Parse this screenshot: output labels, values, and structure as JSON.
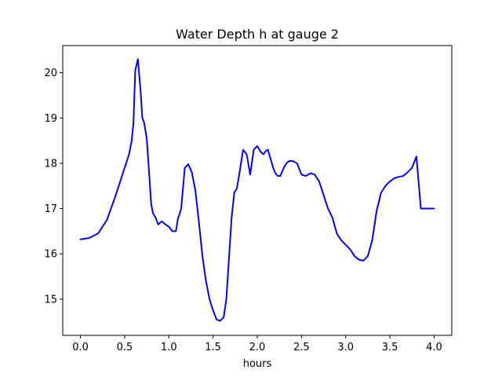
{
  "chart_data": {
    "type": "line",
    "title": "Water Depth h at gauge 2",
    "xlabel": "hours",
    "ylabel": "",
    "xlim": [
      -0.2,
      4.2
    ],
    "ylim": [
      14.2,
      20.6
    ],
    "xticks": [
      0.0,
      0.5,
      1.0,
      1.5,
      2.0,
      2.5,
      3.0,
      3.5,
      4.0
    ],
    "xtick_labels": [
      "0.0",
      "0.5",
      "1.0",
      "1.5",
      "2.0",
      "2.5",
      "3.0",
      "3.5",
      "4.0"
    ],
    "yticks": [
      15,
      16,
      17,
      18,
      19,
      20
    ],
    "ytick_labels": [
      "15",
      "16",
      "17",
      "18",
      "19",
      "20"
    ],
    "grid": false,
    "series": [
      {
        "color": "#0000ff",
        "x": [
          0.0,
          0.1,
          0.2,
          0.3,
          0.4,
          0.5,
          0.55,
          0.58,
          0.6,
          0.62,
          0.65,
          0.68,
          0.7,
          0.72,
          0.75,
          0.78,
          0.8,
          0.82,
          0.85,
          0.88,
          0.92,
          0.96,
          1.0,
          1.04,
          1.08,
          1.1,
          1.14,
          1.18,
          1.22,
          1.26,
          1.28,
          1.3,
          1.34,
          1.38,
          1.42,
          1.46,
          1.5,
          1.54,
          1.58,
          1.62,
          1.65,
          1.68,
          1.71,
          1.74,
          1.77,
          1.8,
          1.84,
          1.88,
          1.92,
          1.96,
          2.0,
          2.04,
          2.07,
          2.1,
          2.12,
          2.15,
          2.18,
          2.2,
          2.23,
          2.26,
          2.3,
          2.33,
          2.36,
          2.4,
          2.45,
          2.5,
          2.55,
          2.6,
          2.65,
          2.7,
          2.75,
          2.8,
          2.85,
          2.9,
          2.95,
          3.0,
          3.05,
          3.1,
          3.15,
          3.2,
          3.25,
          3.3,
          3.35,
          3.4,
          3.45,
          3.5,
          3.55,
          3.6,
          3.65,
          3.7,
          3.75,
          3.8,
          3.85,
          3.9,
          3.95,
          4.0
        ],
        "y": [
          16.32,
          16.35,
          16.45,
          16.75,
          17.3,
          17.9,
          18.2,
          18.5,
          18.9,
          20.05,
          20.3,
          19.6,
          19.0,
          18.9,
          18.55,
          17.7,
          17.1,
          16.9,
          16.8,
          16.65,
          16.72,
          16.65,
          16.6,
          16.5,
          16.5,
          16.75,
          17.0,
          17.9,
          17.98,
          17.8,
          17.6,
          17.4,
          16.7,
          15.95,
          15.4,
          15.0,
          14.75,
          14.55,
          14.52,
          14.6,
          15.0,
          15.9,
          16.8,
          17.35,
          17.45,
          17.8,
          18.3,
          18.2,
          17.75,
          18.3,
          18.38,
          18.25,
          18.2,
          18.28,
          18.3,
          18.1,
          17.9,
          17.8,
          17.72,
          17.72,
          17.9,
          18.0,
          18.05,
          18.05,
          18.0,
          17.75,
          17.72,
          17.78,
          17.75,
          17.6,
          17.3,
          17.0,
          16.8,
          16.45,
          16.3,
          16.2,
          16.1,
          15.95,
          15.87,
          15.85,
          15.95,
          16.3,
          16.95,
          17.35,
          17.5,
          17.6,
          17.67,
          17.7,
          17.72,
          17.8,
          17.9,
          18.15,
          17.0,
          17.0,
          17.0,
          17.0
        ],
        "x_clean": [
          0.0,
          0.1,
          0.2,
          0.3,
          0.4,
          0.5,
          0.55,
          0.58,
          0.6,
          0.62,
          0.65,
          0.68,
          0.7,
          0.72,
          0.75,
          0.78,
          0.8,
          0.82,
          0.85,
          0.88,
          0.92,
          0.96,
          1.0,
          1.04,
          1.08,
          1.1,
          1.14,
          1.18,
          1.22,
          1.26,
          1.28,
          1.3,
          1.34,
          1.38,
          1.42,
          1.46,
          1.5,
          1.54,
          1.58,
          1.62,
          1.65,
          1.68,
          1.71,
          1.74,
          1.77,
          1.8,
          1.84,
          1.88,
          1.92,
          1.96,
          2.0,
          2.04,
          2.07,
          2.1,
          2.12,
          2.15,
          2.18,
          2.2,
          2.23,
          2.26,
          2.3,
          2.33,
          2.36,
          2.4,
          2.45,
          2.5,
          2.55,
          2.6,
          2.65,
          2.7,
          2.75,
          2.8,
          2.85,
          2.9,
          2.95,
          3.0,
          3.05,
          3.1,
          3.15,
          3.2,
          3.25,
          3.3,
          3.35,
          3.4,
          3.45,
          3.5,
          3.55,
          3.6,
          3.65,
          3.7,
          3.75,
          3.8,
          3.85,
          3.9,
          3.95,
          4.0
        ]
      }
    ]
  }
}
